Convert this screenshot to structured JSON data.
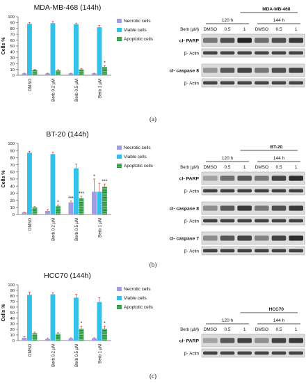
{
  "colors": {
    "necrotic": "#a29ce0",
    "viable": "#33c1ea",
    "apoptotic": "#1f8a3a",
    "apoptotic_stripe": "#7ccf86",
    "error": "#d43a2f"
  },
  "panels": [
    {
      "letter": "(a)",
      "chart_data": {
        "type": "bar",
        "title": "MDA-MB-468 (144h)",
        "ylabel": "Cells %",
        "xlabel": "",
        "ylim": [
          0,
          100
        ],
        "yticks": [
          "0",
          "10",
          "20",
          "30",
          "40",
          "50",
          "60",
          "70",
          "80",
          "90",
          "100"
        ],
        "categories": [
          "DMSO",
          "Berb 0.2 µM",
          "Berb 0.5 µM",
          "Berb 1 µM"
        ],
        "legend_position": "right",
        "series": [
          {
            "name": "Necrotic cells",
            "values": [
              3,
              3,
              3,
              3
            ],
            "errors": [
              0.5,
              0.5,
              0.5,
              0.5
            ],
            "sig": [
              "",
              "",
              "",
              ""
            ]
          },
          {
            "name": "Viable cells",
            "values": [
              88,
              89,
              87,
              82
            ],
            "errors": [
              2,
              3,
              2,
              3
            ],
            "sig": [
              "",
              "",
              "",
              ""
            ]
          },
          {
            "name": "Apoptotic cells",
            "values": [
              9,
              8,
              10,
              14
            ],
            "errors": [
              1,
              1.5,
              1.5,
              2.5
            ],
            "sig": [
              "",
              "",
              "",
              "*"
            ]
          }
        ]
      },
      "blot": {
        "title": "MDA-MB-468",
        "time_labels": [
          "120 h",
          "144 h"
        ],
        "treatment_label": "Berb (µM)",
        "lanes": [
          "DMSO",
          "0.5",
          "1",
          "DMSO",
          "0.5",
          "1"
        ],
        "rows": [
          {
            "label": "cl- PARP",
            "bold": true,
            "intensity": [
              0.55,
              0.75,
              0.95,
              0.6,
              0.75,
              0.85
            ]
          },
          {
            "label": "β- Actin",
            "bold": false,
            "intensity": [
              0.8,
              0.8,
              0.8,
              0.8,
              0.8,
              0.8
            ]
          },
          {
            "label": "cl- caspase 8",
            "bold": true,
            "intensity": [
              0.4,
              0.7,
              0.8,
              0.55,
              0.75,
              0.8
            ]
          },
          {
            "label": "β- Actin",
            "bold": false,
            "intensity": [
              0.8,
              0.8,
              0.8,
              0.8,
              0.8,
              0.8
            ]
          }
        ]
      }
    },
    {
      "letter": "(b)",
      "chart_data": {
        "type": "bar",
        "title": "BT-20 (144h)",
        "ylabel": "Cells %",
        "xlabel": "",
        "ylim": [
          0,
          100
        ],
        "yticks": [
          "0",
          "10",
          "20",
          "30",
          "40",
          "50",
          "60",
          "70",
          "80",
          "90",
          "100"
        ],
        "categories": [
          "DMSO",
          "Berb 0.2 µM",
          "Berb 0.5 µM",
          "Berb 1 µM"
        ],
        "legend_position": "right",
        "series": [
          {
            "name": "Necrotic cells",
            "values": [
              3,
              5,
              17,
              32
            ],
            "errors": [
              0.5,
              2,
              2,
              18
            ],
            "sig": [
              "",
              "",
              "***",
              "*"
            ]
          },
          {
            "name": "Viable cells",
            "values": [
              87,
              85,
              65,
              32
            ],
            "errors": [
              2,
              3,
              6,
              12
            ],
            "sig": [
              "",
              "",
              "",
              ""
            ]
          },
          {
            "name": "Apoptotic cells",
            "values": [
              10,
              12,
              23,
              39
            ],
            "errors": [
              1,
              1.5,
              3,
              4
            ],
            "sig": [
              "",
              "*",
              "***",
              "***"
            ]
          }
        ]
      },
      "blot": {
        "title": "BT-20",
        "time_labels": [
          "120 h",
          "144 h"
        ],
        "treatment_label": "Berb (µM)",
        "lanes": [
          "DMSO",
          "0.5",
          "1",
          "DMSO",
          "0.5",
          "1"
        ],
        "rows": [
          {
            "label": "cl- PARP",
            "bold": true,
            "intensity": [
              0.35,
              0.6,
              0.7,
              0.55,
              0.8,
              0.9
            ]
          },
          {
            "label": "β- Actin",
            "bold": false,
            "intensity": [
              0.8,
              0.8,
              0.8,
              0.8,
              0.8,
              0.8
            ]
          },
          {
            "label": "cl- caspase 8",
            "bold": true,
            "intensity": [
              0.45,
              0.7,
              0.85,
              0.55,
              0.75,
              0.85
            ]
          },
          {
            "label": "β- Actin",
            "bold": false,
            "intensity": [
              0.8,
              0.8,
              0.8,
              0.8,
              0.8,
              0.8
            ]
          },
          {
            "label": "cl- caspase 7",
            "bold": true,
            "intensity": [
              0.45,
              0.7,
              0.8,
              0.5,
              0.8,
              0.9
            ]
          },
          {
            "label": "β- Actin",
            "bold": false,
            "intensity": [
              0.8,
              0.8,
              0.8,
              0.8,
              0.8,
              0.8
            ]
          }
        ]
      }
    },
    {
      "letter": "(c)",
      "chart_data": {
        "type": "bar",
        "title": "HCC70 (144h)",
        "ylabel": "Cells %",
        "xlabel": "",
        "ylim": [
          0,
          100
        ],
        "yticks": [
          "0",
          "10",
          "20",
          "30",
          "40",
          "50",
          "60",
          "70",
          "80",
          "90",
          "100"
        ],
        "categories": [
          "DMSO",
          "Berb 0.2 µM",
          "Berb 0.5 µM",
          "Berb 1 µM"
        ],
        "legend_position": "right",
        "series": [
          {
            "name": "Necrotic cells",
            "values": [
              5,
              3,
              4,
              4
            ],
            "errors": [
              2,
              1,
              1,
              1
            ],
            "sig": [
              "",
              "",
              "",
              ""
            ]
          },
          {
            "name": "Viable cells",
            "values": [
              82,
              83,
              77,
              69
            ],
            "errors": [
              5,
              3,
              6,
              8
            ],
            "sig": [
              "",
              "",
              "",
              ""
            ]
          },
          {
            "name": "Apoptotic cells",
            "values": [
              13,
              12,
              21,
              21
            ],
            "errors": [
              2,
              2,
              5,
              5
            ],
            "sig": [
              "",
              "",
              "*",
              "*"
            ]
          }
        ]
      },
      "blot": {
        "title": "HCC70",
        "time_labels": [
          "120 h",
          "144 h"
        ],
        "treatment_label": "Berb (µM)",
        "lanes": [
          "DMSO",
          "0.5",
          "1",
          "DMSO",
          "0.5",
          "1"
        ],
        "rows": [
          {
            "label": "cl- PARP",
            "bold": true,
            "intensity": [
              0.35,
              0.7,
              0.8,
              0.45,
              0.8,
              0.85
            ]
          },
          {
            "label": "β- Actin",
            "bold": false,
            "intensity": [
              0.8,
              0.8,
              0.8,
              0.8,
              0.8,
              0.8
            ]
          }
        ]
      }
    }
  ]
}
